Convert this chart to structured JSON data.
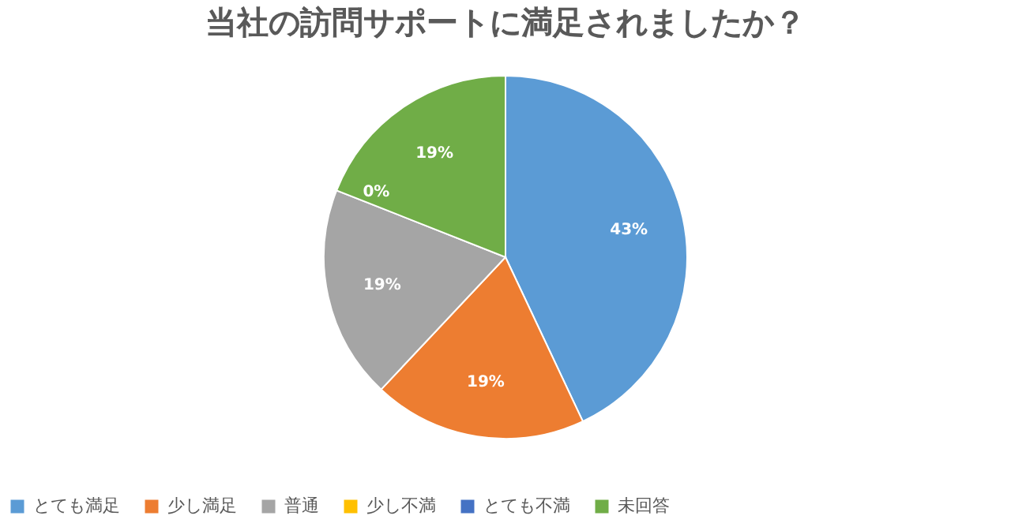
{
  "chart_data": {
    "type": "pie",
    "title": "当社の訪問サポートに満足されましたか？",
    "categories": [
      "とても満足",
      "少し満足",
      "普通",
      "少し不満",
      "とても不満",
      "未回答"
    ],
    "values": [
      43,
      19,
      19,
      0,
      0,
      19
    ],
    "colors": [
      "#5b9bd5",
      "#ed7d31",
      "#a5a5a5",
      "#ffc000",
      "#4472c4",
      "#70ad47"
    ],
    "value_labels": [
      "43%",
      "19%",
      "19%",
      "0%",
      null,
      "19%"
    ],
    "legend": "bottom"
  }
}
